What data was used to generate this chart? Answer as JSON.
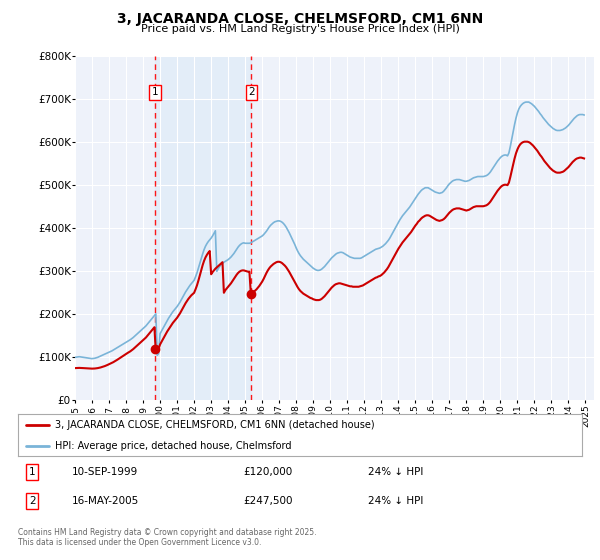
{
  "title": "3, JACARANDA CLOSE, CHELMSFORD, CM1 6NN",
  "subtitle": "Price paid vs. HM Land Registry's House Price Index (HPI)",
  "background_color": "#ffffff",
  "plot_bg_color": "#eef2fa",
  "grid_color": "#ffffff",
  "hpi_color": "#7ab4d8",
  "price_color": "#cc0000",
  "purchase1_date": "10-SEP-1999",
  "purchase1_price": 120000,
  "purchase1_label": "24% ↓ HPI",
  "purchase2_date": "16-MAY-2005",
  "purchase2_price": 247500,
  "purchase2_label": "24% ↓ HPI",
  "legend_line1": "3, JACARANDA CLOSE, CHELMSFORD, CM1 6NN (detached house)",
  "legend_line2": "HPI: Average price, detached house, Chelmsford",
  "footer": "Contains HM Land Registry data © Crown copyright and database right 2025.\nThis data is licensed under the Open Government Licence v3.0.",
  "ylim": [
    0,
    800000
  ],
  "xlim_start": 1995.0,
  "xlim_end": 2025.5,
  "purchase1_year": 1999.7,
  "purchase2_year": 2005.37,
  "marker1_price": 120000,
  "marker2_price": 247500,
  "hpi_years": [
    1995.0,
    1995.083,
    1995.167,
    1995.25,
    1995.333,
    1995.417,
    1995.5,
    1995.583,
    1995.667,
    1995.75,
    1995.833,
    1995.917,
    1996.0,
    1996.083,
    1996.167,
    1996.25,
    1996.333,
    1996.417,
    1996.5,
    1996.583,
    1996.667,
    1996.75,
    1996.833,
    1996.917,
    1997.0,
    1997.083,
    1997.167,
    1997.25,
    1997.333,
    1997.417,
    1997.5,
    1997.583,
    1997.667,
    1997.75,
    1997.833,
    1997.917,
    1998.0,
    1998.083,
    1998.167,
    1998.25,
    1998.333,
    1998.417,
    1998.5,
    1998.583,
    1998.667,
    1998.75,
    1998.833,
    1998.917,
    1999.0,
    1999.083,
    1999.167,
    1999.25,
    1999.333,
    1999.417,
    1999.5,
    1999.583,
    1999.667,
    1999.75,
    1999.833,
    1999.917,
    2000.0,
    2000.083,
    2000.167,
    2000.25,
    2000.333,
    2000.417,
    2000.5,
    2000.583,
    2000.667,
    2000.75,
    2000.833,
    2000.917,
    2001.0,
    2001.083,
    2001.167,
    2001.25,
    2001.333,
    2001.417,
    2001.5,
    2001.583,
    2001.667,
    2001.75,
    2001.833,
    2001.917,
    2002.0,
    2002.083,
    2002.167,
    2002.25,
    2002.333,
    2002.417,
    2002.5,
    2002.583,
    2002.667,
    2002.75,
    2002.833,
    2002.917,
    2003.0,
    2003.083,
    2003.167,
    2003.25,
    2003.333,
    2003.417,
    2003.5,
    2003.583,
    2003.667,
    2003.75,
    2003.833,
    2003.917,
    2004.0,
    2004.083,
    2004.167,
    2004.25,
    2004.333,
    2004.417,
    2004.5,
    2004.583,
    2004.667,
    2004.75,
    2004.833,
    2004.917,
    2005.0,
    2005.083,
    2005.167,
    2005.25,
    2005.333,
    2005.417,
    2005.5,
    2005.583,
    2005.667,
    2005.75,
    2005.833,
    2005.917,
    2006.0,
    2006.083,
    2006.167,
    2006.25,
    2006.333,
    2006.417,
    2006.5,
    2006.583,
    2006.667,
    2006.75,
    2006.833,
    2006.917,
    2007.0,
    2007.083,
    2007.167,
    2007.25,
    2007.333,
    2007.417,
    2007.5,
    2007.583,
    2007.667,
    2007.75,
    2007.833,
    2007.917,
    2008.0,
    2008.083,
    2008.167,
    2008.25,
    2008.333,
    2008.417,
    2008.5,
    2008.583,
    2008.667,
    2008.75,
    2008.833,
    2008.917,
    2009.0,
    2009.083,
    2009.167,
    2009.25,
    2009.333,
    2009.417,
    2009.5,
    2009.583,
    2009.667,
    2009.75,
    2009.833,
    2009.917,
    2010.0,
    2010.083,
    2010.167,
    2010.25,
    2010.333,
    2010.417,
    2010.5,
    2010.583,
    2010.667,
    2010.75,
    2010.833,
    2010.917,
    2011.0,
    2011.083,
    2011.167,
    2011.25,
    2011.333,
    2011.417,
    2011.5,
    2011.583,
    2011.667,
    2011.75,
    2011.833,
    2011.917,
    2012.0,
    2012.083,
    2012.167,
    2012.25,
    2012.333,
    2012.417,
    2012.5,
    2012.583,
    2012.667,
    2012.75,
    2012.833,
    2012.917,
    2013.0,
    2013.083,
    2013.167,
    2013.25,
    2013.333,
    2013.417,
    2013.5,
    2013.583,
    2013.667,
    2013.75,
    2013.833,
    2013.917,
    2014.0,
    2014.083,
    2014.167,
    2014.25,
    2014.333,
    2014.417,
    2014.5,
    2014.583,
    2014.667,
    2014.75,
    2014.833,
    2014.917,
    2015.0,
    2015.083,
    2015.167,
    2015.25,
    2015.333,
    2015.417,
    2015.5,
    2015.583,
    2015.667,
    2015.75,
    2015.833,
    2015.917,
    2016.0,
    2016.083,
    2016.167,
    2016.25,
    2016.333,
    2016.417,
    2016.5,
    2016.583,
    2016.667,
    2016.75,
    2016.833,
    2016.917,
    2017.0,
    2017.083,
    2017.167,
    2017.25,
    2017.333,
    2017.417,
    2017.5,
    2017.583,
    2017.667,
    2017.75,
    2017.833,
    2017.917,
    2018.0,
    2018.083,
    2018.167,
    2018.25,
    2018.333,
    2018.417,
    2018.5,
    2018.583,
    2018.667,
    2018.75,
    2018.833,
    2018.917,
    2019.0,
    2019.083,
    2019.167,
    2019.25,
    2019.333,
    2019.417,
    2019.5,
    2019.583,
    2019.667,
    2019.75,
    2019.833,
    2019.917,
    2020.0,
    2020.083,
    2020.167,
    2020.25,
    2020.333,
    2020.417,
    2020.5,
    2020.583,
    2020.667,
    2020.75,
    2020.833,
    2020.917,
    2021.0,
    2021.083,
    2021.167,
    2021.25,
    2021.333,
    2021.417,
    2021.5,
    2021.583,
    2021.667,
    2021.75,
    2021.833,
    2021.917,
    2022.0,
    2022.083,
    2022.167,
    2022.25,
    2022.333,
    2022.417,
    2022.5,
    2022.583,
    2022.667,
    2022.75,
    2022.833,
    2022.917,
    2023.0,
    2023.083,
    2023.167,
    2023.25,
    2023.333,
    2023.417,
    2023.5,
    2023.583,
    2023.667,
    2023.75,
    2023.833,
    2023.917,
    2024.0,
    2024.083,
    2024.167,
    2024.25,
    2024.333,
    2024.417,
    2024.5,
    2024.583,
    2024.667,
    2024.75,
    2024.833,
    2024.917
  ],
  "hpi_values": [
    100000,
    100500,
    101000,
    101500,
    101000,
    100500,
    100000,
    99500,
    99000,
    98500,
    98000,
    97500,
    97000,
    97500,
    98000,
    99000,
    100000,
    101500,
    103000,
    104500,
    106000,
    107500,
    109000,
    110500,
    112000,
    113500,
    115000,
    117000,
    119000,
    121000,
    123000,
    125000,
    127000,
    129000,
    131000,
    133000,
    135000,
    137000,
    139000,
    141000,
    143500,
    146000,
    149000,
    152000,
    155000,
    158000,
    161000,
    164000,
    167000,
    170000,
    173000,
    177000,
    181000,
    185000,
    189000,
    193000,
    197000,
    201000,
    105000,
    109000,
    155000,
    161000,
    167000,
    173000,
    179000,
    185000,
    191000,
    196000,
    201000,
    206000,
    210000,
    214000,
    218000,
    223000,
    228000,
    234000,
    240000,
    246000,
    252000,
    257000,
    262000,
    267000,
    271000,
    275000,
    279000,
    287000,
    296000,
    307000,
    318000,
    329000,
    340000,
    350000,
    358000,
    364000,
    369000,
    373000,
    377000,
    382000,
    388000,
    394000,
    300000,
    306000,
    311000,
    315000,
    318000,
    321000,
    323000,
    325000,
    327000,
    330000,
    333000,
    337000,
    341000,
    346000,
    351000,
    356000,
    360000,
    363000,
    365000,
    366000,
    365000,
    365000,
    365000,
    365000,
    366000,
    368000,
    370000,
    372000,
    374000,
    376000,
    378000,
    380000,
    382000,
    385000,
    389000,
    393000,
    398000,
    403000,
    407000,
    410000,
    413000,
    415000,
    416000,
    417000,
    417000,
    416000,
    414000,
    411000,
    407000,
    402000,
    396000,
    390000,
    383000,
    376000,
    369000,
    362000,
    354000,
    347000,
    341000,
    336000,
    332000,
    328000,
    325000,
    322000,
    319000,
    316000,
    313000,
    310000,
    307000,
    305000,
    303000,
    302000,
    302000,
    303000,
    305000,
    308000,
    311000,
    315000,
    319000,
    323000,
    327000,
    331000,
    334000,
    337000,
    340000,
    342000,
    343000,
    344000,
    344000,
    343000,
    341000,
    339000,
    337000,
    335000,
    333000,
    332000,
    331000,
    330000,
    330000,
    330000,
    330000,
    330000,
    331000,
    333000,
    335000,
    337000,
    339000,
    341000,
    343000,
    345000,
    347000,
    349000,
    351000,
    352000,
    353000,
    354000,
    356000,
    358000,
    361000,
    364000,
    368000,
    372000,
    377000,
    383000,
    389000,
    395000,
    401000,
    407000,
    413000,
    419000,
    424000,
    429000,
    433000,
    437000,
    441000,
    445000,
    449000,
    454000,
    459000,
    464000,
    469000,
    474000,
    479000,
    483000,
    487000,
    490000,
    492000,
    494000,
    494000,
    494000,
    492000,
    490000,
    488000,
    486000,
    484000,
    483000,
    482000,
    481000,
    482000,
    483000,
    486000,
    490000,
    494000,
    499000,
    503000,
    506000,
    509000,
    511000,
    512000,
    513000,
    513000,
    513000,
    512000,
    511000,
    510000,
    509000,
    509000,
    510000,
    511000,
    513000,
    515000,
    517000,
    518000,
    519000,
    520000,
    520000,
    520000,
    520000,
    520000,
    521000,
    522000,
    524000,
    527000,
    531000,
    536000,
    541000,
    546000,
    551000,
    556000,
    560000,
    564000,
    567000,
    569000,
    570000,
    570000,
    568000,
    575000,
    590000,
    607000,
    624000,
    641000,
    656000,
    668000,
    677000,
    683000,
    687000,
    690000,
    692000,
    693000,
    693000,
    693000,
    691000,
    689000,
    686000,
    683000,
    679000,
    675000,
    671000,
    666000,
    662000,
    657000,
    653000,
    649000,
    645000,
    641000,
    638000,
    635000,
    632000,
    630000,
    628000,
    627000,
    627000,
    627000,
    628000,
    629000,
    631000,
    633000,
    636000,
    639000,
    643000,
    647000,
    651000,
    655000,
    658000,
    661000,
    663000,
    664000,
    664000,
    664000,
    663000
  ],
  "price_years": [
    1995.0,
    1995.083,
    1995.167,
    1995.25,
    1995.333,
    1995.417,
    1995.5,
    1995.583,
    1995.667,
    1995.75,
    1995.833,
    1995.917,
    1996.0,
    1996.083,
    1996.167,
    1996.25,
    1996.333,
    1996.417,
    1996.5,
    1996.583,
    1996.667,
    1996.75,
    1996.833,
    1996.917,
    1997.0,
    1997.083,
    1997.167,
    1997.25,
    1997.333,
    1997.417,
    1997.5,
    1997.583,
    1997.667,
    1997.75,
    1997.833,
    1997.917,
    1998.0,
    1998.083,
    1998.167,
    1998.25,
    1998.333,
    1998.417,
    1998.5,
    1998.583,
    1998.667,
    1998.75,
    1998.833,
    1998.917,
    1999.0,
    1999.083,
    1999.167,
    1999.25,
    1999.333,
    1999.417,
    1999.5,
    1999.583,
    1999.667,
    1999.75,
    1999.833,
    1999.917,
    2000.0,
    2000.083,
    2000.167,
    2000.25,
    2000.333,
    2000.417,
    2000.5,
    2000.583,
    2000.667,
    2000.75,
    2000.833,
    2000.917,
    2001.0,
    2001.083,
    2001.167,
    2001.25,
    2001.333,
    2001.417,
    2001.5,
    2001.583,
    2001.667,
    2001.75,
    2001.833,
    2001.917,
    2002.0,
    2002.083,
    2002.167,
    2002.25,
    2002.333,
    2002.417,
    2002.5,
    2002.583,
    2002.667,
    2002.75,
    2002.833,
    2002.917,
    2003.0,
    2003.083,
    2003.167,
    2003.25,
    2003.333,
    2003.417,
    2003.5,
    2003.583,
    2003.667,
    2003.75,
    2003.833,
    2003.917,
    2004.0,
    2004.083,
    2004.167,
    2004.25,
    2004.333,
    2004.417,
    2004.5,
    2004.583,
    2004.667,
    2004.75,
    2004.833,
    2004.917,
    2005.0,
    2005.083,
    2005.167,
    2005.25,
    2005.333,
    2005.417,
    2005.5,
    2005.583,
    2005.667,
    2005.75,
    2005.833,
    2005.917,
    2006.0,
    2006.083,
    2006.167,
    2006.25,
    2006.333,
    2006.417,
    2006.5,
    2006.583,
    2006.667,
    2006.75,
    2006.833,
    2006.917,
    2007.0,
    2007.083,
    2007.167,
    2007.25,
    2007.333,
    2007.417,
    2007.5,
    2007.583,
    2007.667,
    2007.75,
    2007.833,
    2007.917,
    2008.0,
    2008.083,
    2008.167,
    2008.25,
    2008.333,
    2008.417,
    2008.5,
    2008.583,
    2008.667,
    2008.75,
    2008.833,
    2008.917,
    2009.0,
    2009.083,
    2009.167,
    2009.25,
    2009.333,
    2009.417,
    2009.5,
    2009.583,
    2009.667,
    2009.75,
    2009.833,
    2009.917,
    2010.0,
    2010.083,
    2010.167,
    2010.25,
    2010.333,
    2010.417,
    2010.5,
    2010.583,
    2010.667,
    2010.75,
    2010.833,
    2010.917,
    2011.0,
    2011.083,
    2011.167,
    2011.25,
    2011.333,
    2011.417,
    2011.5,
    2011.583,
    2011.667,
    2011.75,
    2011.833,
    2011.917,
    2012.0,
    2012.083,
    2012.167,
    2012.25,
    2012.333,
    2012.417,
    2012.5,
    2012.583,
    2012.667,
    2012.75,
    2012.833,
    2012.917,
    2013.0,
    2013.083,
    2013.167,
    2013.25,
    2013.333,
    2013.417,
    2013.5,
    2013.583,
    2013.667,
    2013.75,
    2013.833,
    2013.917,
    2014.0,
    2014.083,
    2014.167,
    2014.25,
    2014.333,
    2014.417,
    2014.5,
    2014.583,
    2014.667,
    2014.75,
    2014.833,
    2014.917,
    2015.0,
    2015.083,
    2015.167,
    2015.25,
    2015.333,
    2015.417,
    2015.5,
    2015.583,
    2015.667,
    2015.75,
    2015.833,
    2015.917,
    2016.0,
    2016.083,
    2016.167,
    2016.25,
    2016.333,
    2016.417,
    2016.5,
    2016.583,
    2016.667,
    2016.75,
    2016.833,
    2016.917,
    2017.0,
    2017.083,
    2017.167,
    2017.25,
    2017.333,
    2017.417,
    2017.5,
    2017.583,
    2017.667,
    2017.75,
    2017.833,
    2017.917,
    2018.0,
    2018.083,
    2018.167,
    2018.25,
    2018.333,
    2018.417,
    2018.5,
    2018.583,
    2018.667,
    2018.75,
    2018.833,
    2018.917,
    2019.0,
    2019.083,
    2019.167,
    2019.25,
    2019.333,
    2019.417,
    2019.5,
    2019.583,
    2019.667,
    2019.75,
    2019.833,
    2019.917,
    2020.0,
    2020.083,
    2020.167,
    2020.25,
    2020.333,
    2020.417,
    2020.5,
    2020.583,
    2020.667,
    2020.75,
    2020.833,
    2020.917,
    2021.0,
    2021.083,
    2021.167,
    2021.25,
    2021.333,
    2021.417,
    2021.5,
    2021.583,
    2021.667,
    2021.75,
    2021.833,
    2021.917,
    2022.0,
    2022.083,
    2022.167,
    2022.25,
    2022.333,
    2022.417,
    2022.5,
    2022.583,
    2022.667,
    2022.75,
    2022.833,
    2022.917,
    2023.0,
    2023.083,
    2023.167,
    2023.25,
    2023.333,
    2023.417,
    2023.5,
    2023.583,
    2023.667,
    2023.75,
    2023.833,
    2023.917,
    2024.0,
    2024.083,
    2024.167,
    2024.25,
    2024.333,
    2024.417,
    2024.5,
    2024.583,
    2024.667,
    2024.75,
    2024.833,
    2024.917
  ],
  "price_values": [
    75000,
    75200,
    75400,
    75500,
    75400,
    75200,
    75000,
    74800,
    74600,
    74400,
    74200,
    74000,
    73800,
    73900,
    74100,
    74500,
    75000,
    75700,
    76500,
    77500,
    78500,
    79700,
    81000,
    82500,
    84000,
    85500,
    87000,
    88800,
    90700,
    92700,
    94800,
    97000,
    99200,
    101500,
    103800,
    106000,
    108000,
    110000,
    112000,
    114000,
    116500,
    119000,
    122000,
    125000,
    128000,
    131000,
    134000,
    137000,
    140000,
    143000,
    146000,
    150000,
    154000,
    158000,
    162000,
    166000,
    170000,
    112000,
    116000,
    120000,
    130000,
    136000,
    142000,
    148000,
    154000,
    160000,
    165000,
    170000,
    175000,
    180000,
    184000,
    188000,
    192000,
    197000,
    202000,
    208000,
    214000,
    220000,
    226000,
    231000,
    236000,
    240000,
    244000,
    247000,
    250000,
    258000,
    267000,
    278000,
    290000,
    302000,
    314000,
    324000,
    332000,
    338000,
    343000,
    347000,
    293000,
    298000,
    302000,
    306000,
    309000,
    312000,
    315000,
    318000,
    321000,
    250000,
    256000,
    260000,
    264000,
    268000,
    272000,
    277000,
    282000,
    287000,
    292000,
    296000,
    299000,
    301000,
    302000,
    302000,
    301000,
    300000,
    299000,
    299000,
    247500,
    250000,
    252000,
    255000,
    258000,
    262000,
    266000,
    271000,
    276000,
    282000,
    289000,
    296000,
    302000,
    307000,
    311000,
    314000,
    317000,
    319000,
    321000,
    322000,
    322000,
    321000,
    319000,
    316000,
    313000,
    309000,
    304000,
    299000,
    293000,
    287000,
    281000,
    275000,
    269000,
    263000,
    258000,
    254000,
    251000,
    248000,
    246000,
    244000,
    242000,
    240000,
    238000,
    237000,
    235000,
    234000,
    233000,
    233000,
    233000,
    234000,
    236000,
    239000,
    242000,
    246000,
    250000,
    254000,
    258000,
    262000,
    265000,
    268000,
    270000,
    271000,
    272000,
    272000,
    271000,
    270000,
    269000,
    268000,
    267000,
    266000,
    265000,
    265000,
    264000,
    264000,
    264000,
    264000,
    264000,
    265000,
    266000,
    267000,
    269000,
    271000,
    273000,
    275000,
    277000,
    279000,
    281000,
    283000,
    285000,
    286000,
    288000,
    289000,
    291000,
    294000,
    297000,
    301000,
    305000,
    310000,
    316000,
    322000,
    328000,
    334000,
    340000,
    346000,
    352000,
    357000,
    362000,
    367000,
    371000,
    375000,
    379000,
    383000,
    387000,
    391000,
    396000,
    401000,
    406000,
    410000,
    415000,
    418000,
    422000,
    425000,
    427000,
    429000,
    430000,
    430000,
    429000,
    427000,
    425000,
    423000,
    421000,
    419000,
    418000,
    417000,
    418000,
    419000,
    421000,
    424000,
    428000,
    432000,
    436000,
    439000,
    442000,
    444000,
    445000,
    446000,
    446000,
    446000,
    445000,
    444000,
    443000,
    442000,
    441000,
    442000,
    443000,
    445000,
    447000,
    449000,
    450000,
    451000,
    451000,
    451000,
    451000,
    451000,
    451000,
    452000,
    453000,
    455000,
    458000,
    462000,
    467000,
    472000,
    477000,
    482000,
    487000,
    491000,
    495000,
    498000,
    500000,
    501000,
    501000,
    500000,
    506000,
    519000,
    534000,
    548000,
    562000,
    574000,
    583000,
    590000,
    595000,
    598000,
    600000,
    601000,
    601000,
    601000,
    600000,
    598000,
    595000,
    592000,
    588000,
    584000,
    580000,
    575000,
    570000,
    566000,
    561000,
    556000,
    552000,
    548000,
    544000,
    540000,
    537000,
    534000,
    532000,
    530000,
    529000,
    529000,
    529000,
    530000,
    531000,
    533000,
    536000,
    539000,
    542000,
    546000,
    550000,
    554000,
    557000,
    560000,
    562000,
    563000,
    564000,
    564000,
    563000,
    562000
  ]
}
